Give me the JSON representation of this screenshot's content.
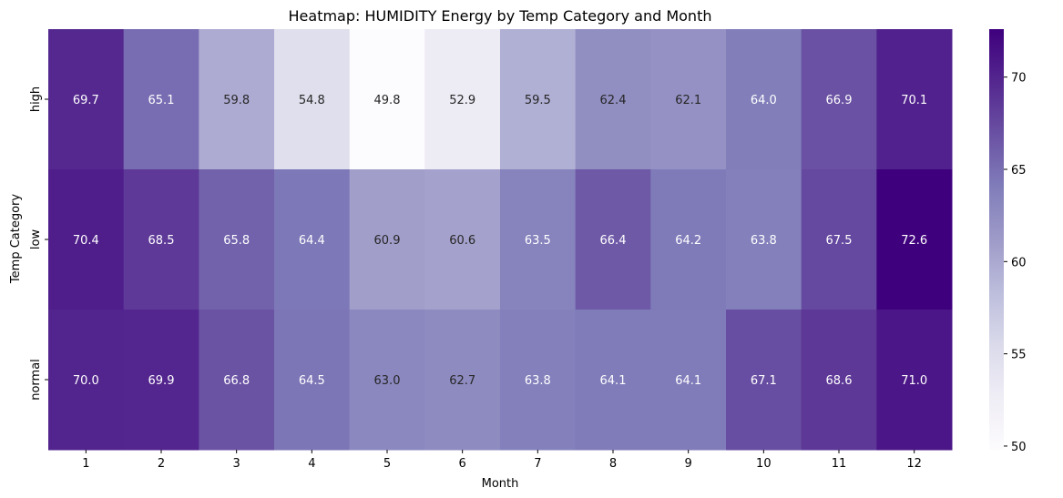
{
  "chart_data": {
    "type": "heatmap",
    "title": "Heatmap: HUMIDITY Energy by Temp Category and Month",
    "xlabel": "Month",
    "ylabel": "Temp Category",
    "x_categories": [
      "1",
      "2",
      "3",
      "4",
      "5",
      "6",
      "7",
      "8",
      "9",
      "10",
      "11",
      "12"
    ],
    "y_categories": [
      "high",
      "low",
      "normal"
    ],
    "values": [
      [
        69.7,
        65.1,
        59.8,
        54.8,
        49.8,
        52.9,
        59.5,
        62.4,
        62.1,
        64.0,
        66.9,
        70.1
      ],
      [
        70.4,
        68.5,
        65.8,
        64.4,
        60.9,
        60.6,
        63.5,
        66.4,
        64.2,
        63.8,
        67.5,
        72.6
      ],
      [
        70.0,
        69.9,
        66.8,
        64.5,
        63.0,
        62.7,
        63.8,
        64.1,
        64.1,
        67.1,
        68.6,
        71.0
      ]
    ],
    "colorbar": {
      "min": 49.8,
      "max": 72.6,
      "ticks": [
        50,
        55,
        60,
        65,
        70
      ]
    },
    "colormap": "Purples",
    "colors": {
      "low_end": "#fcfbfd",
      "high_end": "#3f007d",
      "text_light": "#ffffff",
      "text_dark": "#262626"
    }
  }
}
